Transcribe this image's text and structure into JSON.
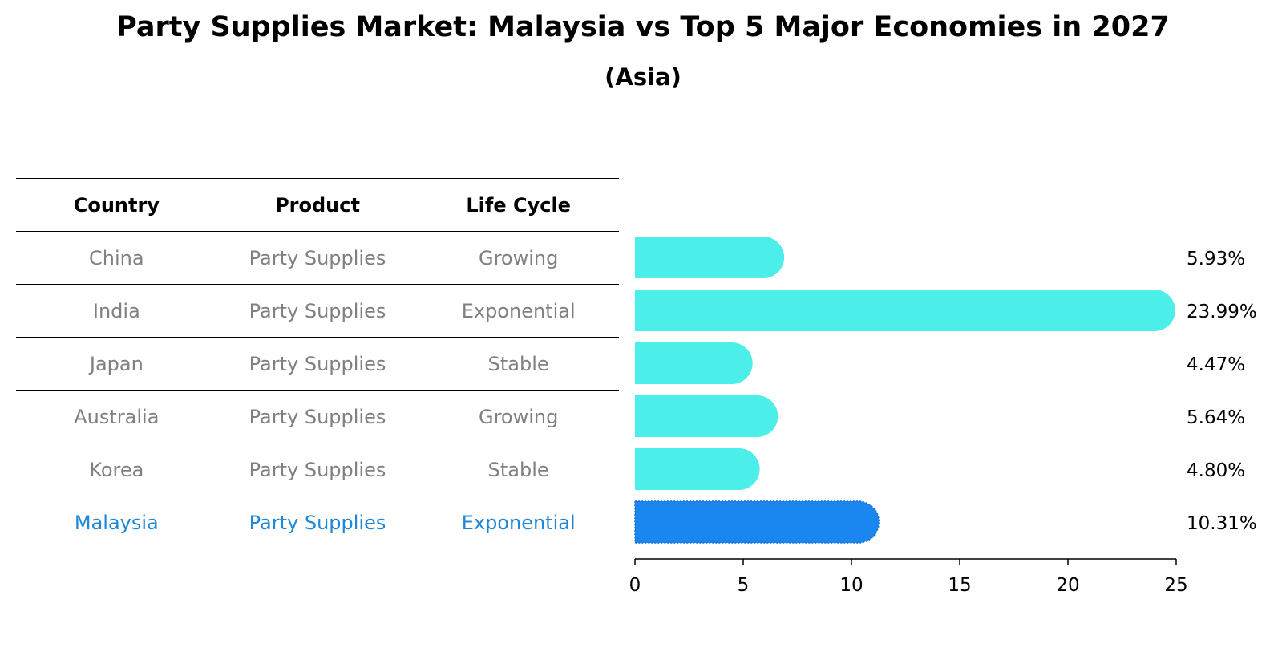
{
  "title": "Party Supplies Market: Malaysia vs Top 5 Major Economies in 2027",
  "subtitle": "(Asia)",
  "table": {
    "headers": [
      "Country",
      "Product",
      "Life Cycle"
    ],
    "rows": [
      {
        "country": "China",
        "product": "Party Supplies",
        "life_cycle": "Growing"
      },
      {
        "country": "India",
        "product": "Party Supplies",
        "life_cycle": "Exponential"
      },
      {
        "country": "Japan",
        "product": "Party Supplies",
        "life_cycle": "Stable"
      },
      {
        "country": "Australia",
        "product": "Party Supplies",
        "life_cycle": "Growing"
      },
      {
        "country": "Korea",
        "product": "Party Supplies",
        "life_cycle": "Stable"
      },
      {
        "country": "Malaysia",
        "product": "Party Supplies",
        "life_cycle": "Exponential"
      }
    ]
  },
  "colors": {
    "bar": "#4beee8",
    "highlight_bar": "#1a86f0",
    "highlight_text": "#1f87d6",
    "muted_text": "#808080"
  },
  "chart_data": {
    "type": "bar",
    "orientation": "horizontal",
    "categories": [
      "China",
      "India",
      "Japan",
      "Australia",
      "Korea",
      "Malaysia"
    ],
    "values": [
      5.93,
      23.99,
      4.47,
      5.64,
      4.8,
      10.31
    ],
    "value_labels": [
      "5.93%",
      "23.99%",
      "4.47%",
      "5.64%",
      "4.80%",
      "10.31%"
    ],
    "highlight": "Malaysia",
    "xlim": [
      0,
      25
    ],
    "xticks": [
      0,
      5,
      10,
      15,
      20,
      25
    ],
    "grid": false
  }
}
